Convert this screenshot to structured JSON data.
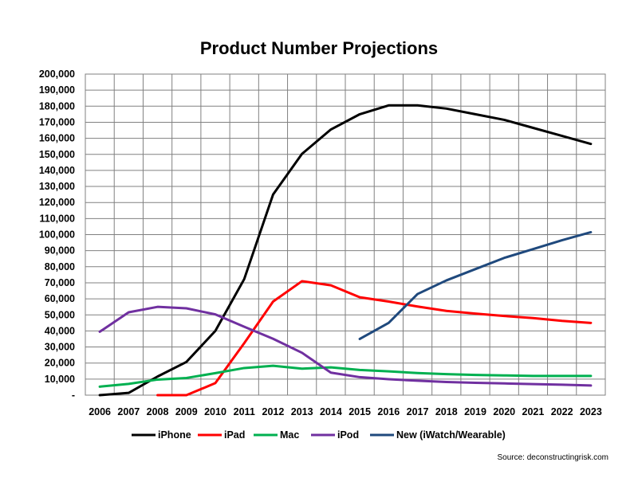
{
  "chart_data": {
    "type": "line",
    "title": "Product Number Projections",
    "xlabel": "",
    "ylabel": "",
    "ylim": [
      0,
      200000
    ],
    "yticks": [
      {
        "value": 0,
        "label": "-"
      },
      {
        "value": 10000,
        "label": "10,000"
      },
      {
        "value": 20000,
        "label": "20,000"
      },
      {
        "value": 30000,
        "label": "30,000"
      },
      {
        "value": 40000,
        "label": "40,000"
      },
      {
        "value": 50000,
        "label": "50,000"
      },
      {
        "value": 60000,
        "label": "60,000"
      },
      {
        "value": 70000,
        "label": "70,000"
      },
      {
        "value": 80000,
        "label": "80,000"
      },
      {
        "value": 90000,
        "label": "90,000"
      },
      {
        "value": 100000,
        "label": "100,000"
      },
      {
        "value": 110000,
        "label": "110,000"
      },
      {
        "value": 120000,
        "label": "120,000"
      },
      {
        "value": 130000,
        "label": "130,000"
      },
      {
        "value": 140000,
        "label": "140,000"
      },
      {
        "value": 150000,
        "label": "150,000"
      },
      {
        "value": 160000,
        "label": "160,000"
      },
      {
        "value": 170000,
        "label": "170,000"
      },
      {
        "value": 180000,
        "label": "180,000"
      },
      {
        "value": 190000,
        "label": "190,000"
      },
      {
        "value": 200000,
        "label": "200,000"
      }
    ],
    "categories": [
      "2006",
      "2007",
      "2008",
      "2009",
      "2010",
      "2011",
      "2012",
      "2013",
      "2014",
      "2015",
      "2016",
      "2017",
      "2018",
      "2019",
      "2020",
      "2021",
      "2022",
      "2023"
    ],
    "grid": true,
    "legend_position": "bottom",
    "series": [
      {
        "name": "iPhone",
        "color": "#000000",
        "values": [
          0,
          1400,
          11600,
          20700,
          40000,
          72300,
          125000,
          150300,
          165500,
          175000,
          180500,
          180500,
          178500,
          175000,
          171500,
          166500,
          161500,
          156500
        ]
      },
      {
        "name": "iPad",
        "color": "#ff0000",
        "values": [
          null,
          null,
          0,
          0,
          7500,
          32400,
          58300,
          71000,
          68400,
          61000,
          58300,
          55200,
          52500,
          50800,
          49300,
          48000,
          46300,
          45000
        ]
      },
      {
        "name": "Mac",
        "color": "#00b050",
        "values": [
          5300,
          7000,
          9700,
          10700,
          13700,
          16900,
          18300,
          16500,
          17300,
          15700,
          14800,
          13800,
          13100,
          12600,
          12300,
          12000,
          12000,
          12000
        ]
      },
      {
        "name": "iPod",
        "color": "#7030a0",
        "values": [
          39500,
          51600,
          55000,
          54100,
          50300,
          42600,
          35100,
          26400,
          14000,
          11200,
          9900,
          9000,
          8200,
          7700,
          7300,
          6900,
          6500,
          6000
        ]
      },
      {
        "name": "New (iWatch/Wearable)",
        "color": "#1f497d",
        "values": [
          null,
          null,
          null,
          null,
          null,
          null,
          null,
          null,
          null,
          35000,
          45000,
          63000,
          71500,
          78500,
          85500,
          91000,
          96500,
          101500
        ]
      }
    ],
    "source": "Source: deconstructingrisk.com"
  }
}
